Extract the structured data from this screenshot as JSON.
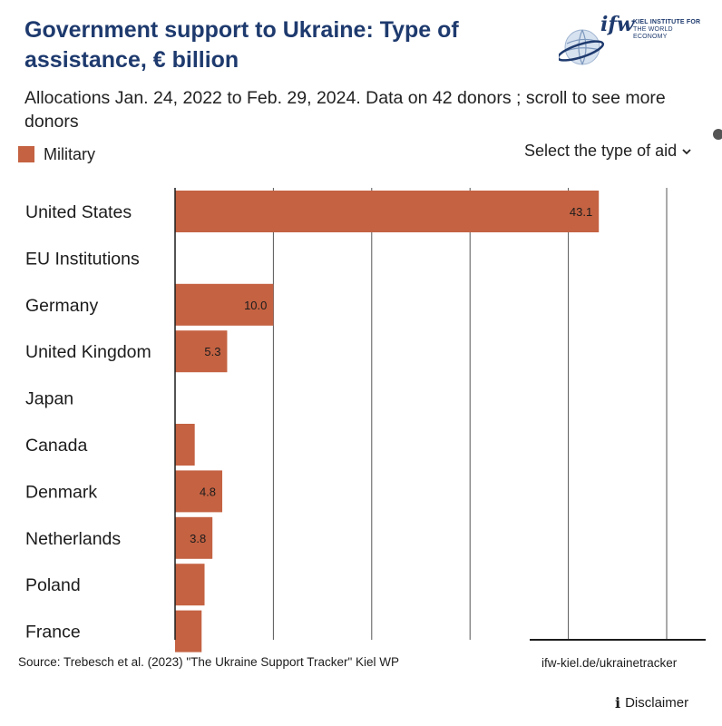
{
  "header": {
    "title": "Government support to Ukraine:  Type of assistance, € billion",
    "subtitle": "Allocations Jan. 24, 2022 to Feb. 29, 2024. Data on 42 donors ; scroll to see more donors",
    "logo_word": "ifw",
    "logo_line1": "KIEL INSTITUTE FOR",
    "logo_line2": "THE WORLD ECONOMY",
    "logo_icon": "globe-icon"
  },
  "controls": {
    "select_label": "Select the type of aid",
    "select_icon": "chevron-down-icon"
  },
  "footer": {
    "source": "Source: Trebesch et al. (2023) \"The Ukraine Support Tracker\" Kiel WP",
    "link": "ifw-kiel.de/ukrainetracker",
    "disclaimer": "Disclaimer",
    "disclaimer_icon": "info-icon"
  },
  "chart_data": {
    "type": "bar",
    "orientation": "horizontal",
    "categories": [
      "United States",
      "EU Institutions",
      "Germany",
      "United Kingdom",
      "Japan",
      "Canada",
      "Denmark",
      "Netherlands",
      "Poland",
      "France"
    ],
    "series": [
      {
        "name": "Military",
        "color": "#c46242",
        "values": [
          43.1,
          0,
          10.0,
          5.3,
          0,
          2.0,
          4.8,
          3.8,
          3.0,
          2.7
        ],
        "labels": [
          "43.1",
          "",
          "10.0",
          "5.3",
          "",
          "",
          "4.8",
          "3.8",
          "",
          ""
        ]
      }
    ],
    "xlim": [
      0,
      50
    ],
    "gridlines": [
      10,
      20,
      30,
      40,
      50
    ],
    "grid": true,
    "legend": "top-left"
  }
}
